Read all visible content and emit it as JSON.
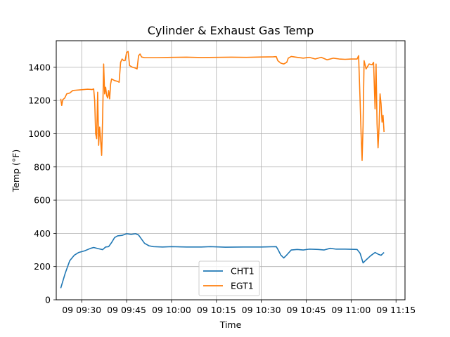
{
  "chart_data": {
    "type": "line",
    "title": "Cylinder & Exhaust Gas Temp",
    "xlabel": "Time",
    "ylabel": "Temp (°F)",
    "xlim": [
      "09:21:30",
      "11:18:00"
    ],
    "ylim": [
      0,
      1560
    ],
    "grid": true,
    "legend_position": "lower-center",
    "x_ticks": [
      {
        "value": "09:30",
        "label": "09 09:30"
      },
      {
        "value": "09:45",
        "label": "09 09:45"
      },
      {
        "value": "10:00",
        "label": "09 10:00"
      },
      {
        "value": "10:15",
        "label": "09 10:15"
      },
      {
        "value": "10:30",
        "label": "09 10:30"
      },
      {
        "value": "10:45",
        "label": "09 10:45"
      },
      {
        "value": "11:00",
        "label": "09 11:00"
      },
      {
        "value": "11:15",
        "label": "09 11:15"
      }
    ],
    "y_ticks": [
      0,
      200,
      400,
      600,
      800,
      1000,
      1200,
      1400
    ],
    "series": [
      {
        "name": "CHT1",
        "color": "#1f77b4",
        "points": [
          [
            "09:23:00",
            70
          ],
          [
            "09:24:30",
            160
          ],
          [
            "09:26:00",
            235
          ],
          [
            "09:27:30",
            268
          ],
          [
            "09:29:00",
            285
          ],
          [
            "09:31:00",
            295
          ],
          [
            "09:33:00",
            310
          ],
          [
            "09:34:00",
            315
          ],
          [
            "09:35:30",
            308
          ],
          [
            "09:37:00",
            302
          ],
          [
            "09:38:00",
            318
          ],
          [
            "09:39:00",
            320
          ],
          [
            "09:40:00",
            345
          ],
          [
            "09:41:00",
            375
          ],
          [
            "09:42:00",
            385
          ],
          [
            "09:43:30",
            388
          ],
          [
            "09:45:00",
            398
          ],
          [
            "09:46:30",
            394
          ],
          [
            "09:48:00",
            398
          ],
          [
            "09:49:00",
            390
          ],
          [
            "09:50:00",
            365
          ],
          [
            "09:51:00",
            340
          ],
          [
            "09:52:30",
            325
          ],
          [
            "09:54:00",
            320
          ],
          [
            "09:57:00",
            318
          ],
          [
            "10:00:00",
            320
          ],
          [
            "10:05:00",
            318
          ],
          [
            "10:10:00",
            318
          ],
          [
            "10:13:00",
            320
          ],
          [
            "10:18:00",
            317
          ],
          [
            "10:24:00",
            318
          ],
          [
            "10:30:00",
            318
          ],
          [
            "10:35:00",
            320
          ],
          [
            "10:35:30",
            305
          ],
          [
            "10:36:30",
            270
          ],
          [
            "10:37:30",
            252
          ],
          [
            "10:38:30",
            270
          ],
          [
            "10:40:00",
            300
          ],
          [
            "10:42:00",
            303
          ],
          [
            "10:44:00",
            300
          ],
          [
            "10:46:00",
            305
          ],
          [
            "10:49:00",
            303
          ],
          [
            "10:51:00",
            300
          ],
          [
            "10:53:00",
            310
          ],
          [
            "10:55:00",
            305
          ],
          [
            "10:58:00",
            305
          ],
          [
            "11:02:00",
            303
          ],
          [
            "11:03:00",
            280
          ],
          [
            "11:04:00",
            222
          ],
          [
            "11:05:00",
            240
          ],
          [
            "11:06:30",
            265
          ],
          [
            "11:08:00",
            285
          ],
          [
            "11:09:00",
            275
          ],
          [
            "11:10:00",
            268
          ],
          [
            "11:11:00",
            285
          ]
        ]
      },
      {
        "name": "EGT1",
        "color": "#ff7f0e",
        "points": [
          [
            "09:23:00",
            1210
          ],
          [
            "09:23:20",
            1170
          ],
          [
            "09:23:40",
            1205
          ],
          [
            "09:24:20",
            1215
          ],
          [
            "09:25:00",
            1240
          ],
          [
            "09:26:00",
            1245
          ],
          [
            "09:27:00",
            1260
          ],
          [
            "09:28:00",
            1262
          ],
          [
            "09:30:00",
            1265
          ],
          [
            "09:32:00",
            1268
          ],
          [
            "09:33:30",
            1266
          ],
          [
            "09:34:00",
            1270
          ],
          [
            "09:34:20",
            1200
          ],
          [
            "09:34:40",
            1000
          ],
          [
            "09:35:00",
            970
          ],
          [
            "09:35:20",
            1250
          ],
          [
            "09:35:40",
            930
          ],
          [
            "09:36:00",
            1040
          ],
          [
            "09:36:20",
            960
          ],
          [
            "09:36:40",
            870
          ],
          [
            "09:37:00",
            1100
          ],
          [
            "09:37:20",
            1420
          ],
          [
            "09:37:40",
            1240
          ],
          [
            "09:38:00",
            1280
          ],
          [
            "09:38:20",
            1230
          ],
          [
            "09:38:40",
            1215
          ],
          [
            "09:39:00",
            1260
          ],
          [
            "09:39:20",
            1210
          ],
          [
            "09:39:40",
            1300
          ],
          [
            "09:40:00",
            1330
          ],
          [
            "09:41:00",
            1320
          ],
          [
            "09:42:00",
            1315
          ],
          [
            "09:42:30",
            1310
          ],
          [
            "09:43:00",
            1430
          ],
          [
            "09:43:30",
            1450
          ],
          [
            "09:44:00",
            1440
          ],
          [
            "09:44:30",
            1440
          ],
          [
            "09:45:00",
            1490
          ],
          [
            "09:45:30",
            1495
          ],
          [
            "09:46:00",
            1410
          ],
          [
            "09:47:00",
            1400
          ],
          [
            "09:48:00",
            1395
          ],
          [
            "09:48:30",
            1390
          ],
          [
            "09:49:00",
            1470
          ],
          [
            "09:49:30",
            1480
          ],
          [
            "09:50:00",
            1462
          ],
          [
            "09:51:00",
            1458
          ],
          [
            "09:55:00",
            1458
          ],
          [
            "10:00:00",
            1460
          ],
          [
            "10:05:00",
            1461
          ],
          [
            "10:10:00",
            1459
          ],
          [
            "10:15:00",
            1460
          ],
          [
            "10:20:00",
            1461
          ],
          [
            "10:25:00",
            1460
          ],
          [
            "10:30:00",
            1462
          ],
          [
            "10:34:00",
            1463
          ],
          [
            "10:35:00",
            1464
          ],
          [
            "10:35:30",
            1440
          ],
          [
            "10:36:30",
            1425
          ],
          [
            "10:37:30",
            1420
          ],
          [
            "10:38:30",
            1430
          ],
          [
            "10:39:00",
            1455
          ],
          [
            "10:40:00",
            1465
          ],
          [
            "10:42:00",
            1460
          ],
          [
            "10:44:00",
            1455
          ],
          [
            "10:46:00",
            1460
          ],
          [
            "10:48:00",
            1450
          ],
          [
            "10:50:00",
            1460
          ],
          [
            "10:52:00",
            1445
          ],
          [
            "10:54:00",
            1455
          ],
          [
            "10:56:00",
            1450
          ],
          [
            "10:58:00",
            1448
          ],
          [
            "11:00:00",
            1450
          ],
          [
            "11:02:00",
            1450
          ],
          [
            "11:02:30",
            1470
          ],
          [
            "11:03:00",
            1200
          ],
          [
            "11:03:20",
            1000
          ],
          [
            "11:03:40",
            840
          ],
          [
            "11:04:00",
            1050
          ],
          [
            "11:04:20",
            1440
          ],
          [
            "11:05:00",
            1390
          ],
          [
            "11:06:00",
            1420
          ],
          [
            "11:07:00",
            1415
          ],
          [
            "11:07:30",
            1430
          ],
          [
            "11:08:00",
            1150
          ],
          [
            "11:08:20",
            1420
          ],
          [
            "11:08:40",
            1060
          ],
          [
            "11:09:00",
            915
          ],
          [
            "11:09:20",
            1040
          ],
          [
            "11:09:40",
            1240
          ],
          [
            "11:10:00",
            1180
          ],
          [
            "11:10:20",
            1070
          ],
          [
            "11:10:40",
            1110
          ],
          [
            "11:11:00",
            1010
          ]
        ]
      }
    ]
  }
}
